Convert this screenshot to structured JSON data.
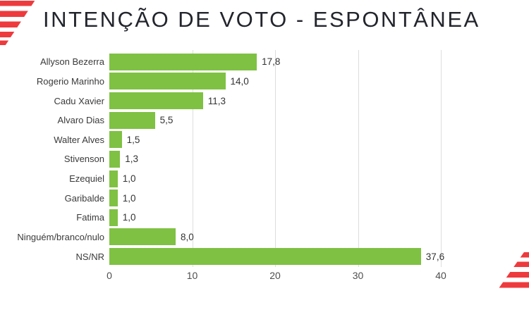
{
  "title": "INTENÇÃO DE VOTO - ESPONTÂNEA",
  "colors": {
    "bar_green": "#7FC143",
    "logo_red": "#EE3A3D",
    "gridline": "#DDDDDD",
    "title_text": "#23252D",
    "label_text": "#3A3A3A"
  },
  "chart_data": {
    "type": "bar",
    "orientation": "horizontal",
    "title": "INTENÇÃO DE VOTO - ESPONTÂNEA",
    "categories": [
      "Allyson Bezerra",
      "Rogerio Marinho",
      "Cadu Xavier",
      "Alvaro Dias",
      "Walter Alves",
      "Stivenson",
      "Ezequiel",
      "Garibalde",
      "Fatima",
      "Ninguém/branco/nulo",
      "NS/NR"
    ],
    "values": [
      17.8,
      14.0,
      11.3,
      5.5,
      1.5,
      1.3,
      1.0,
      1.0,
      1.0,
      8.0,
      37.6
    ],
    "value_labels": [
      "17,8",
      "14,0",
      "11,3",
      "5,5",
      "1,5",
      "1,3",
      "1,0",
      "1,0",
      "1,0",
      "8,0",
      "37,6"
    ],
    "xlim": [
      0,
      40
    ],
    "x_ticks": [
      0,
      10,
      20,
      30,
      40
    ],
    "xlabel": "",
    "ylabel": "",
    "grid": "vertical-only",
    "legend": "none",
    "bar_color": "#7FC143"
  }
}
